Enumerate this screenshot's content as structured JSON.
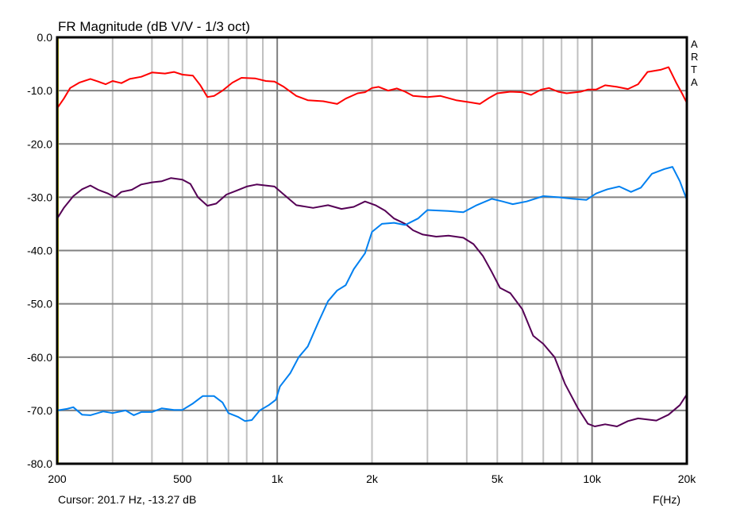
{
  "chart_data": {
    "type": "line",
    "title": "FR Magnitude (dB V/V - 1/3 oct)",
    "xlabel": "F(Hz)",
    "ylabel": "",
    "xscale": "log",
    "xlim": [
      200,
      20000
    ],
    "ylim": [
      -80,
      0
    ],
    "grid": true,
    "legend": "none",
    "x_ticks": [
      {
        "value": 200,
        "label": "200"
      },
      {
        "value": 500,
        "label": "500"
      },
      {
        "value": 1000,
        "label": "1k"
      },
      {
        "value": 2000,
        "label": "2k"
      },
      {
        "value": 5000,
        "label": "5k"
      },
      {
        "value": 10000,
        "label": "10k"
      },
      {
        "value": 20000,
        "label": "20k"
      }
    ],
    "y_ticks": [
      {
        "value": 0,
        "label": "0.0"
      },
      {
        "value": -10,
        "label": "-10.0"
      },
      {
        "value": -20,
        "label": "-20.0"
      },
      {
        "value": -30,
        "label": "-30.0"
      },
      {
        "value": -40,
        "label": "-40.0"
      },
      {
        "value": -50,
        "label": "-50.0"
      },
      {
        "value": -60,
        "label": "-60.0"
      },
      {
        "value": -70,
        "label": "-70.0"
      },
      {
        "value": -80,
        "label": "-80.0"
      }
    ],
    "series": [
      {
        "name": "red",
        "color": "#ff0000",
        "points": [
          [
            200,
            -13.3
          ],
          [
            210,
            -11.5
          ],
          [
            220,
            -9.5
          ],
          [
            235,
            -8.5
          ],
          [
            255,
            -7.8
          ],
          [
            270,
            -8.3
          ],
          [
            285,
            -8.8
          ],
          [
            300,
            -8.2
          ],
          [
            320,
            -8.6
          ],
          [
            340,
            -7.8
          ],
          [
            370,
            -7.4
          ],
          [
            400,
            -6.6
          ],
          [
            440,
            -6.8
          ],
          [
            470,
            -6.5
          ],
          [
            500,
            -7.0
          ],
          [
            540,
            -7.2
          ],
          [
            570,
            -9.0
          ],
          [
            600,
            -11.2
          ],
          [
            630,
            -11.0
          ],
          [
            670,
            -10.0
          ],
          [
            720,
            -8.5
          ],
          [
            770,
            -7.6
          ],
          [
            850,
            -7.7
          ],
          [
            920,
            -8.2
          ],
          [
            980,
            -8.3
          ],
          [
            1050,
            -9.3
          ],
          [
            1150,
            -11.0
          ],
          [
            1250,
            -11.8
          ],
          [
            1400,
            -12.0
          ],
          [
            1550,
            -12.5
          ],
          [
            1650,
            -11.5
          ],
          [
            1800,
            -10.5
          ],
          [
            1900,
            -10.3
          ],
          [
            2000,
            -9.5
          ],
          [
            2100,
            -9.3
          ],
          [
            2250,
            -10.0
          ],
          [
            2400,
            -9.6
          ],
          [
            2550,
            -10.2
          ],
          [
            2700,
            -11.0
          ],
          [
            3000,
            -11.2
          ],
          [
            3300,
            -11.0
          ],
          [
            3700,
            -11.8
          ],
          [
            4100,
            -12.2
          ],
          [
            4400,
            -12.5
          ],
          [
            4700,
            -11.4
          ],
          [
            5000,
            -10.5
          ],
          [
            5500,
            -10.2
          ],
          [
            6000,
            -10.3
          ],
          [
            6400,
            -10.8
          ],
          [
            6900,
            -9.8
          ],
          [
            7300,
            -9.5
          ],
          [
            7800,
            -10.2
          ],
          [
            8300,
            -10.5
          ],
          [
            9200,
            -10.2
          ],
          [
            9700,
            -9.8
          ],
          [
            10300,
            -9.8
          ],
          [
            11000,
            -9.0
          ],
          [
            12000,
            -9.3
          ],
          [
            13000,
            -9.7
          ],
          [
            14000,
            -8.8
          ],
          [
            15000,
            -6.5
          ],
          [
            16500,
            -6.1
          ],
          [
            17500,
            -5.6
          ],
          [
            18500,
            -8.5
          ],
          [
            19300,
            -10.5
          ],
          [
            20000,
            -12.3
          ]
        ]
      },
      {
        "name": "purple",
        "color": "#550055",
        "points": [
          [
            200,
            -34.0
          ],
          [
            210,
            -32.0
          ],
          [
            225,
            -29.8
          ],
          [
            240,
            -28.5
          ],
          [
            255,
            -27.8
          ],
          [
            270,
            -28.6
          ],
          [
            290,
            -29.3
          ],
          [
            305,
            -30.0
          ],
          [
            320,
            -29.0
          ],
          [
            345,
            -28.6
          ],
          [
            370,
            -27.6
          ],
          [
            400,
            -27.2
          ],
          [
            430,
            -27.0
          ],
          [
            460,
            -26.4
          ],
          [
            500,
            -26.7
          ],
          [
            530,
            -27.5
          ],
          [
            560,
            -30.0
          ],
          [
            600,
            -31.6
          ],
          [
            640,
            -31.2
          ],
          [
            690,
            -29.5
          ],
          [
            740,
            -28.8
          ],
          [
            800,
            -28.0
          ],
          [
            860,
            -27.6
          ],
          [
            920,
            -27.8
          ],
          [
            980,
            -28.0
          ],
          [
            1050,
            -29.5
          ],
          [
            1150,
            -31.5
          ],
          [
            1300,
            -32.0
          ],
          [
            1450,
            -31.5
          ],
          [
            1600,
            -32.2
          ],
          [
            1750,
            -31.8
          ],
          [
            1900,
            -30.8
          ],
          [
            2050,
            -31.5
          ],
          [
            2200,
            -32.5
          ],
          [
            2350,
            -34.0
          ],
          [
            2550,
            -35.0
          ],
          [
            2700,
            -36.2
          ],
          [
            2900,
            -37.0
          ],
          [
            3200,
            -37.4
          ],
          [
            3500,
            -37.2
          ],
          [
            3900,
            -37.6
          ],
          [
            4200,
            -38.8
          ],
          [
            4500,
            -41.0
          ],
          [
            4800,
            -44.0
          ],
          [
            5100,
            -47.0
          ],
          [
            5500,
            -48.0
          ],
          [
            6000,
            -51.0
          ],
          [
            6500,
            -56.0
          ],
          [
            7000,
            -57.5
          ],
          [
            7600,
            -60.0
          ],
          [
            8200,
            -65.0
          ],
          [
            9000,
            -69.5
          ],
          [
            9700,
            -72.5
          ],
          [
            10200,
            -73.0
          ],
          [
            11000,
            -72.6
          ],
          [
            12000,
            -73.0
          ],
          [
            13000,
            -72.0
          ],
          [
            14000,
            -71.5
          ],
          [
            16000,
            -71.9
          ],
          [
            17500,
            -70.8
          ],
          [
            19000,
            -69.0
          ],
          [
            20000,
            -67.0
          ]
        ]
      },
      {
        "name": "blue",
        "color": "#0080f0",
        "points": [
          [
            200,
            -70.0
          ],
          [
            215,
            -69.7
          ],
          [
            225,
            -69.4
          ],
          [
            240,
            -70.8
          ],
          [
            255,
            -70.9
          ],
          [
            280,
            -70.2
          ],
          [
            300,
            -70.5
          ],
          [
            330,
            -70.0
          ],
          [
            350,
            -70.9
          ],
          [
            370,
            -70.3
          ],
          [
            400,
            -70.3
          ],
          [
            430,
            -69.6
          ],
          [
            470,
            -69.9
          ],
          [
            500,
            -69.9
          ],
          [
            540,
            -68.7
          ],
          [
            580,
            -67.3
          ],
          [
            630,
            -67.3
          ],
          [
            670,
            -68.5
          ],
          [
            700,
            -70.5
          ],
          [
            750,
            -71.2
          ],
          [
            790,
            -72.0
          ],
          [
            830,
            -71.8
          ],
          [
            880,
            -70.0
          ],
          [
            940,
            -69.0
          ],
          [
            990,
            -68.0
          ],
          [
            1020,
            -65.5
          ],
          [
            1100,
            -63.0
          ],
          [
            1170,
            -60.0
          ],
          [
            1250,
            -58.0
          ],
          [
            1350,
            -53.5
          ],
          [
            1450,
            -49.5
          ],
          [
            1550,
            -47.5
          ],
          [
            1650,
            -46.5
          ],
          [
            1750,
            -43.5
          ],
          [
            1900,
            -40.5
          ],
          [
            2000,
            -36.5
          ],
          [
            2150,
            -35.0
          ],
          [
            2350,
            -34.8
          ],
          [
            2550,
            -35.2
          ],
          [
            2800,
            -34.0
          ],
          [
            3000,
            -32.4
          ],
          [
            3500,
            -32.6
          ],
          [
            3900,
            -32.8
          ],
          [
            4300,
            -31.5
          ],
          [
            4800,
            -30.3
          ],
          [
            5200,
            -30.8
          ],
          [
            5600,
            -31.3
          ],
          [
            6200,
            -30.8
          ],
          [
            7000,
            -29.8
          ],
          [
            7800,
            -30.0
          ],
          [
            8700,
            -30.3
          ],
          [
            9600,
            -30.5
          ],
          [
            10300,
            -29.3
          ],
          [
            11200,
            -28.5
          ],
          [
            12200,
            -28.0
          ],
          [
            13300,
            -29.0
          ],
          [
            14300,
            -28.2
          ],
          [
            15500,
            -25.6
          ],
          [
            17000,
            -24.7
          ],
          [
            18000,
            -24.3
          ],
          [
            19000,
            -27.0
          ],
          [
            20000,
            -30.5
          ]
        ]
      }
    ]
  },
  "brand": [
    "A",
    "R",
    "T",
    "A"
  ],
  "cursor": {
    "text": "Cursor: 201.7 Hz, -13.27 dB",
    "freq": 201.7,
    "value_db": -13.27
  }
}
